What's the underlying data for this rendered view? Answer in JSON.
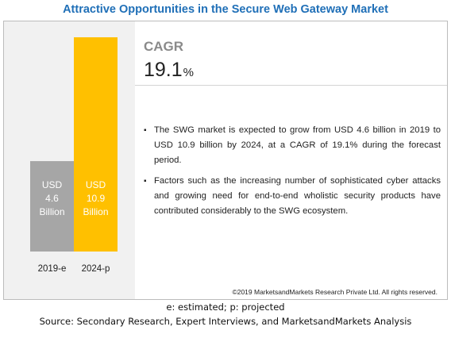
{
  "title": "Attractive Opportunities in the Secure Web Gateway Market",
  "cagr": {
    "label": "CAGR",
    "value": "19.1",
    "unit": "%"
  },
  "bullets": [
    "The SWG market is expected to grow from USD 4.6 billion in 2019 to USD 10.9 billion by 2024, at a CAGR of 19.1% during the forecast period.",
    "Factors such as the increasing number of sophisticated cyber attacks and growing need for end-to-end wholistic security products have contributed considerably to the SWG ecosystem."
  ],
  "copyright": "©2019 MarketsandMarkets Research Private Ltd. All rights reserved.",
  "footnote": "e: estimated; p: projected",
  "source": "Source: Secondary Research, Expert Interviews, and MarketsandMarkets Analysis",
  "colors": {
    "title": "#1f6fb7",
    "bar_2019": "#a6a6a6",
    "bar_2024": "#ffc000",
    "panel": "#f1f1f1"
  },
  "chart_data": {
    "type": "bar",
    "categories": [
      "2019-e",
      "2024-p"
    ],
    "values": [
      4.6,
      10.9
    ],
    "bar_labels": [
      [
        "USD",
        "4.6",
        "Billion"
      ],
      [
        "USD",
        "10.9",
        "Billion"
      ]
    ],
    "bar_colors": [
      "#a6a6a6",
      "#ffc000"
    ],
    "unit": "USD Billion",
    "ylim": [
      0,
      10.9
    ],
    "grid": false,
    "legend": "none"
  }
}
